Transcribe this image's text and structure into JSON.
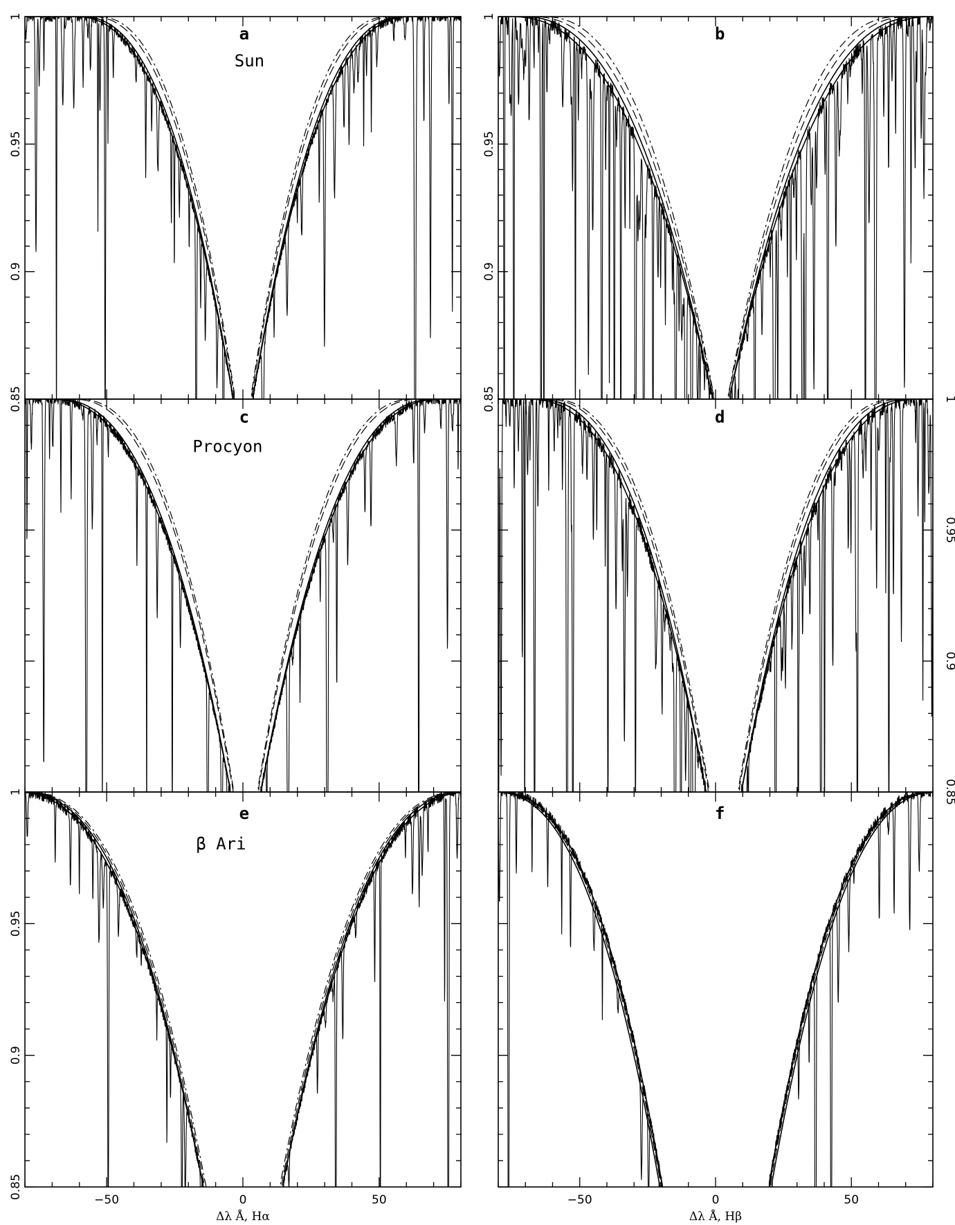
{
  "chart_data": [
    {
      "id": "a",
      "type": "line",
      "panel_label": "a",
      "star": "Sun",
      "xlim": [
        -80,
        80
      ],
      "ylim": [
        0.85,
        1.0
      ],
      "x_ticks": [
        -50,
        0,
        50
      ],
      "y_ticks": [
        0.85,
        0.9,
        0.95,
        1
      ],
      "y_tick_labels": [
        "0.85",
        "0.9",
        "0.95",
        "1"
      ],
      "y_tick_labels_side": "left",
      "x_tick_labels": [],
      "xlabel": "",
      "profile": {
        "center": 0,
        "core_halfwidth": 3.5,
        "wing_halfwidth": 62
      },
      "spectrum": {
        "line_density": 1.0,
        "noise": 0.004,
        "seed": 11
      },
      "model_curves": [
        {
          "style": "solid",
          "core_halfwidth": 3.5,
          "wing_halfwidth": 62
        },
        {
          "style": "solid",
          "core_halfwidth": 3.5,
          "wing_halfwidth": 60
        },
        {
          "style": "dashed",
          "core_halfwidth": 3.0,
          "wing_halfwidth": 56
        },
        {
          "style": "dashdot",
          "core_halfwidth": 2.8,
          "wing_halfwidth": 54
        }
      ]
    },
    {
      "id": "b",
      "type": "line",
      "panel_label": "b",
      "star": "",
      "xlim": [
        -80,
        80
      ],
      "ylim": [
        0.85,
        1.0
      ],
      "x_ticks": [
        -50,
        0,
        50
      ],
      "y_ticks": [
        0.85,
        0.9,
        0.95,
        1
      ],
      "y_tick_labels": [
        "0.85",
        "0.9",
        "0.95",
        "1"
      ],
      "y_tick_labels_side": "left",
      "x_tick_labels": [],
      "xlabel": "",
      "profile": {
        "center": 2,
        "core_halfwidth": 3.0,
        "wing_halfwidth": 78
      },
      "spectrum": {
        "line_density": 2.4,
        "noise": 0.006,
        "seed": 23
      },
      "model_curves": [
        {
          "style": "solid",
          "core_halfwidth": 3.0,
          "wing_halfwidth": 78
        },
        {
          "style": "solid",
          "core_halfwidth": 3.0,
          "wing_halfwidth": 74
        },
        {
          "style": "dashed",
          "core_halfwidth": 2.5,
          "wing_halfwidth": 70
        },
        {
          "style": "dashdot",
          "core_halfwidth": 2.4,
          "wing_halfwidth": 66
        }
      ]
    },
    {
      "id": "c",
      "type": "line",
      "panel_label": "c",
      "star": "Procyon",
      "xlim": [
        -80,
        80
      ],
      "ylim": [
        0.85,
        1.0
      ],
      "x_ticks": [
        -50,
        0,
        50
      ],
      "y_ticks": [
        0.85,
        0.9,
        0.95,
        1
      ],
      "y_tick_labels": [],
      "y_tick_labels_side": "left",
      "x_tick_labels": [],
      "xlabel": "",
      "profile": {
        "center": 1,
        "core_halfwidth": 5.5,
        "wing_halfwidth": 72
      },
      "spectrum": {
        "line_density": 0.8,
        "noise": 0.004,
        "seed": 37
      },
      "model_curves": [
        {
          "style": "solid",
          "core_halfwidth": 5.5,
          "wing_halfwidth": 72
        },
        {
          "style": "solid",
          "core_halfwidth": 5.5,
          "wing_halfwidth": 70
        },
        {
          "style": "dashed",
          "core_halfwidth": 4.5,
          "wing_halfwidth": 64
        },
        {
          "style": "dashdot",
          "core_halfwidth": 4.3,
          "wing_halfwidth": 62
        }
      ]
    },
    {
      "id": "d",
      "type": "line",
      "panel_label": "d",
      "star": "",
      "xlim": [
        -80,
        80
      ],
      "ylim": [
        0.85,
        1.0
      ],
      "x_ticks": [
        -50,
        0,
        50
      ],
      "y_ticks": [
        0.85,
        0.9,
        0.95,
        1
      ],
      "y_tick_labels": [
        "0.85",
        "0.9",
        "0.95",
        "1"
      ],
      "y_tick_labels_side": "right",
      "x_tick_labels": [],
      "xlabel": "",
      "profile": {
        "center": 3,
        "core_halfwidth": 6.5,
        "wing_halfwidth": 72
      },
      "spectrum": {
        "line_density": 2.0,
        "noise": 0.006,
        "seed": 53
      },
      "model_curves": [
        {
          "style": "solid",
          "core_halfwidth": 6.5,
          "wing_halfwidth": 72
        },
        {
          "style": "solid",
          "core_halfwidth": 6.5,
          "wing_halfwidth": 69
        },
        {
          "style": "dashed",
          "core_halfwidth": 5.5,
          "wing_halfwidth": 66
        },
        {
          "style": "dashdot",
          "core_halfwidth": 5.2,
          "wing_halfwidth": 64
        }
      ]
    },
    {
      "id": "e",
      "type": "line",
      "panel_label": "e",
      "star": "β Ari",
      "xlim": [
        -80,
        80
      ],
      "ylim": [
        0.85,
        1.0
      ],
      "x_ticks": [
        -50,
        0,
        50
      ],
      "y_ticks": [
        0.85,
        0.9,
        0.95,
        1
      ],
      "y_tick_labels": [
        "0.85",
        "0.9",
        "0.95",
        "1"
      ],
      "y_tick_labels_side": "left",
      "x_tick_labels": [
        "−50",
        "0",
        "50"
      ],
      "xlabel": "Δλ Å, Hα",
      "profile": {
        "center": 0,
        "core_halfwidth": 14.5,
        "wing_halfwidth": 84
      },
      "spectrum": {
        "line_density": 0.9,
        "noise": 0.004,
        "seed": 71
      },
      "model_curves": [
        {
          "style": "solid",
          "core_halfwidth": 14.5,
          "wing_halfwidth": 84
        },
        {
          "style": "solid",
          "core_halfwidth": 14.5,
          "wing_halfwidth": 82
        },
        {
          "style": "dashed",
          "core_halfwidth": 14.0,
          "wing_halfwidth": 81
        },
        {
          "style": "dashdot",
          "core_halfwidth": 13.5,
          "wing_halfwidth": 80
        }
      ]
    },
    {
      "id": "f",
      "type": "line",
      "panel_label": "f",
      "star": "",
      "xlim": [
        -80,
        80
      ],
      "ylim": [
        0.85,
        1.0
      ],
      "x_ticks": [
        -50,
        0,
        50
      ],
      "y_ticks": [
        0.85,
        0.9,
        0.95,
        1
      ],
      "y_tick_labels": [],
      "y_tick_labels_side": "left",
      "x_tick_labels": [
        "−50",
        "0",
        "50"
      ],
      "xlabel": "Δλ Å, Hβ",
      "profile": {
        "center": 0,
        "core_halfwidth": 19.5,
        "wing_halfwidth": 80
      },
      "spectrum": {
        "line_density": 0.55,
        "noise": 0.004,
        "seed": 89
      },
      "model_curves": [
        {
          "style": "solid",
          "core_halfwidth": 19.5,
          "wing_halfwidth": 80
        },
        {
          "style": "solid",
          "core_halfwidth": 20.5,
          "wing_halfwidth": 82
        },
        {
          "style": "dashed",
          "core_halfwidth": 20.0,
          "wing_halfwidth": 81
        },
        {
          "style": "dashdot",
          "core_halfwidth": 19.8,
          "wing_halfwidth": 80
        }
      ]
    }
  ]
}
